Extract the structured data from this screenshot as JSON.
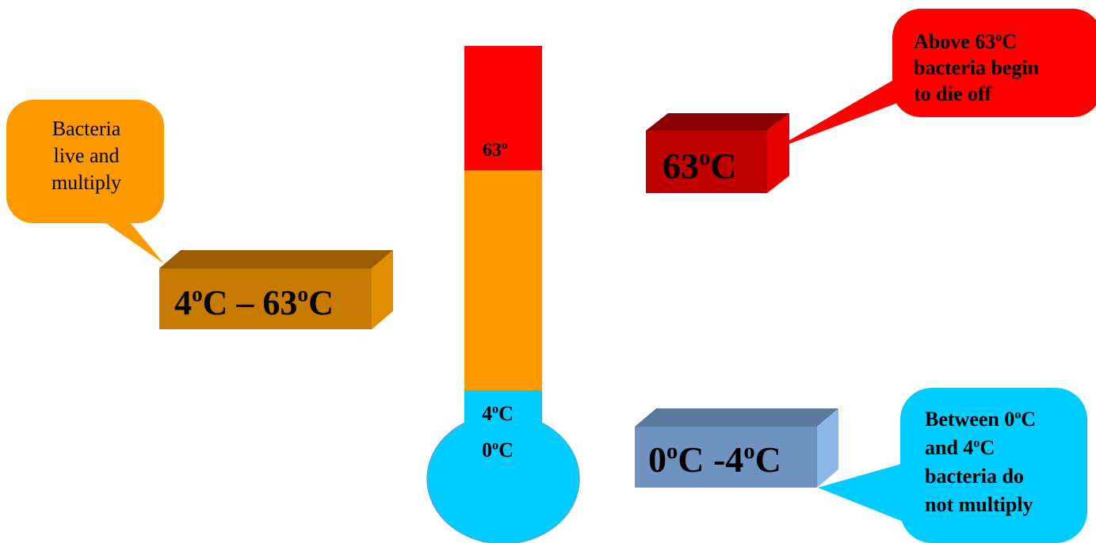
{
  "thermometer": {
    "labels": {
      "top": {
        "num": "63",
        "sup": "o",
        "unit": ""
      },
      "four": {
        "num": "4",
        "sup": "o",
        "unit": "C"
      },
      "zero": {
        "num": "0",
        "sup": "o",
        "unit": "C"
      }
    },
    "colors": {
      "hot": "#ff0000",
      "warm": "#ff9900",
      "cold": "#00ccff"
    }
  },
  "boxes": {
    "orange": {
      "a": "4",
      "deg1": "o",
      "b": "C – 63",
      "deg2": "o",
      "c": "C",
      "color": "#c67a00"
    },
    "red": {
      "a": "63",
      "deg1": "o",
      "b": "C",
      "color": "#c00000"
    },
    "blue": {
      "a": "0",
      "deg1": "o",
      "b": "C -4",
      "deg2": "o",
      "c": "C",
      "color": "#6f93c0"
    }
  },
  "callouts": {
    "orange": {
      "lines": [
        "Bacteria",
        "live and",
        "multiply"
      ],
      "color": "#ff9900"
    },
    "red": {
      "line1_a": "Above 63",
      "line1_deg": "o",
      "line1_b": "C",
      "line2": "bacteria begin",
      "line3": "to die off",
      "color": "#ff0000"
    },
    "blue": {
      "line1_a": "Between 0",
      "line1_deg": "o",
      "line1_b": "C",
      "line2_a": "and 4",
      "line2_deg": "o",
      "line2_b": "C",
      "line3": "bacteria do",
      "line4": "not multiply",
      "color": "#00ccff"
    }
  }
}
